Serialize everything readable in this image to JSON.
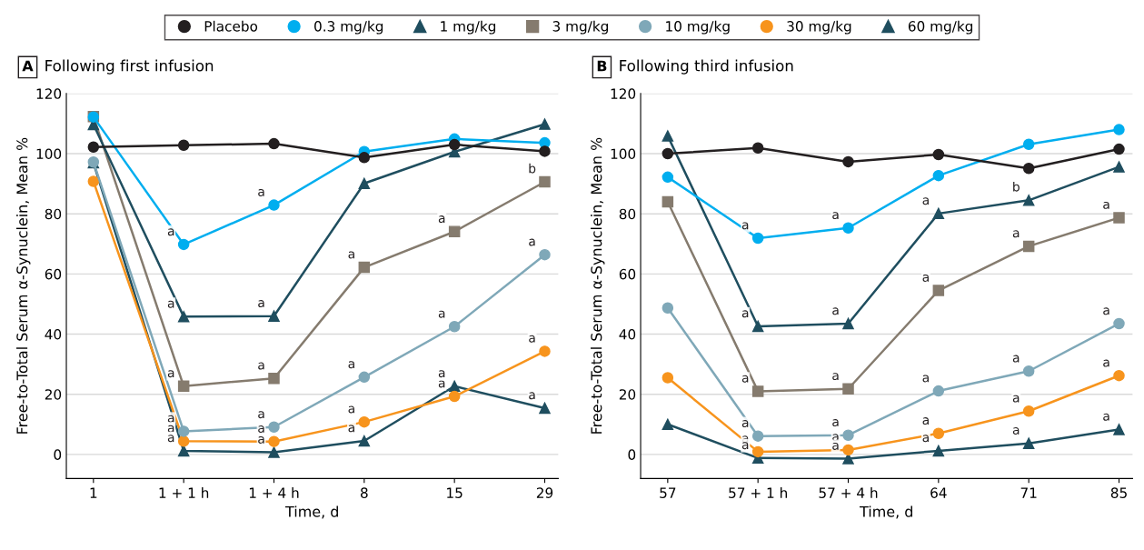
{
  "chart_data": [
    {
      "type": "line",
      "title": "A Following first infusion",
      "xlabel": "Time, d",
      "ylabel": "Free-to-Total Serum α-Synuclein, Mean %",
      "categories": [
        "1",
        "1 + 1 h",
        "1 + 4 h",
        "8",
        "15",
        "29"
      ],
      "ylim": [
        -8,
        120
      ],
      "yticks": [
        0,
        20,
        40,
        60,
        80,
        100,
        120
      ],
      "grid": "y",
      "legend": "top",
      "line_style": "solid",
      "series": [
        {
          "name": "Placebo",
          "color": "#231f20",
          "marker": "circle",
          "values": [
            102.2,
            102.8,
            103.3,
            98.7,
            103,
            100.8
          ]
        },
        {
          "name": "0.3 mg/kg",
          "color": "#00aeef",
          "marker": "circle",
          "values": [
            112.2,
            69.8,
            82.9,
            100.7,
            104.9,
            103.6
          ]
        },
        {
          "name": "1 mg/kg",
          "color": "#1f4e5f",
          "marker": "triangle",
          "values": [
            109.7,
            45.8,
            46,
            90.1,
            100.6,
            109.8
          ]
        },
        {
          "name": "3 mg/kg",
          "color": "#857b6e",
          "marker": "square",
          "values": [
            112.3,
            22.7,
            25.3,
            62.2,
            74.1,
            90.6
          ]
        },
        {
          "name": "10 mg/kg",
          "color": "#7fa8b8",
          "marker": "circle",
          "values": [
            97.2,
            7.7,
            9.1,
            25.7,
            42.5,
            66.4
          ]
        },
        {
          "name": "30 mg/kg",
          "color": "#f7941d",
          "marker": "circle",
          "values": [
            90.8,
            4.4,
            4.3,
            10.8,
            19.3,
            34.3
          ]
        },
        {
          "name": "60 mg/kg",
          "color": "#1f4e5f",
          "marker": "triangle",
          "values": [
            97,
            1.2,
            0.7,
            4.5,
            22.7,
            15.4
          ]
        }
      ],
      "annotations": [
        {
          "text": "a",
          "x": "1 + 1 h",
          "y": 69.8
        },
        {
          "text": "a",
          "x": "1 + 4 h",
          "y": 82.9
        },
        {
          "text": "a",
          "x": "1 + 1 h",
          "y": 45.8
        },
        {
          "text": "a",
          "x": "1 + 4 h",
          "y": 46
        },
        {
          "text": "a",
          "x": "1 + 1 h",
          "y": 22.7
        },
        {
          "text": "a",
          "x": "1 + 4 h",
          "y": 25.3
        },
        {
          "text": "a",
          "x": "8",
          "y": 62.2
        },
        {
          "text": "a",
          "x": "15",
          "y": 74.1
        },
        {
          "text": "b",
          "x": "29",
          "y": 90.6
        },
        {
          "text": "a",
          "x": "1 + 1 h",
          "y": 7.7
        },
        {
          "text": "a",
          "x": "1 + 4 h",
          "y": 9.1
        },
        {
          "text": "a",
          "x": "8",
          "y": 25.7
        },
        {
          "text": "a",
          "x": "15",
          "y": 42.5
        },
        {
          "text": "a",
          "x": "29",
          "y": 66.4
        },
        {
          "text": "a",
          "x": "1 + 1 h",
          "y": 4.4
        },
        {
          "text": "a",
          "x": "1 + 4 h",
          "y": 4.3
        },
        {
          "text": "a",
          "x": "8",
          "y": 10.8
        },
        {
          "text": "a",
          "x": "15",
          "y": 19.3
        },
        {
          "text": "a",
          "x": "29",
          "y": 34.3
        },
        {
          "text": "a",
          "x": "1 + 1 h",
          "y": 1.2
        },
        {
          "text": "a",
          "x": "1 + 4 h",
          "y": 0.7
        },
        {
          "text": "a",
          "x": "8",
          "y": 4.5
        },
        {
          "text": "a",
          "x": "15",
          "y": 22.7
        },
        {
          "text": "a",
          "x": "29",
          "y": 15.4
        }
      ]
    },
    {
      "type": "line",
      "title": "B Following third infusion",
      "xlabel": "Time, d",
      "ylabel": "Free-to-Total Serum α-Synuclein, Mean %",
      "categories": [
        "57",
        "57 + 1 h",
        "57 + 4 h",
        "64",
        "71",
        "85"
      ],
      "ylim": [
        -8,
        120
      ],
      "yticks": [
        0,
        20,
        40,
        60,
        80,
        100,
        120
      ],
      "grid": "y",
      "line_style": "solid",
      "series": [
        {
          "color": "#231f20",
          "marker": "circle",
          "values": [
            100,
            101.9,
            97.3,
            99.7,
            95.1,
            101.5
          ]
        },
        {
          "color": "#00aeef",
          "marker": "circle",
          "values": [
            92.2,
            71.9,
            75.3,
            92.7,
            103.1,
            108
          ]
        },
        {
          "color": "#1f4e5f",
          "marker": "triangle",
          "values": [
            105.9,
            42.6,
            43.5,
            80.1,
            84.5,
            95.6
          ]
        },
        {
          "color": "#857b6e",
          "marker": "square",
          "values": [
            84,
            21,
            21.8,
            54.5,
            69.2,
            78.7
          ]
        },
        {
          "color": "#7fa8b8",
          "marker": "circle",
          "values": [
            48.7,
            6.1,
            6.4,
            21.1,
            27.7,
            43.5
          ]
        },
        {
          "color": "#f7941d",
          "marker": "circle",
          "values": [
            25.5,
            0.9,
            1.5,
            7,
            14.4,
            26.2
          ]
        },
        {
          "color": "#1f4e5f",
          "marker": "triangle",
          "values": [
            10,
            -1.2,
            -1.4,
            1.2,
            3.7,
            8.3
          ]
        }
      ],
      "annotations": [
        {
          "text": "a",
          "x": "57 + 1 h",
          "y": 71.9
        },
        {
          "text": "a",
          "x": "57 + 4 h",
          "y": 75.3
        },
        {
          "text": "a",
          "x": "57 + 1 h",
          "y": 42.6
        },
        {
          "text": "a",
          "x": "57 + 4 h",
          "y": 43.5
        },
        {
          "text": "a",
          "x": "64",
          "y": 80.1
        },
        {
          "text": "b",
          "x": "71",
          "y": 84.5
        },
        {
          "text": "a",
          "x": "57 + 1 h",
          "y": 21
        },
        {
          "text": "a",
          "x": "57 + 4 h",
          "y": 21.8
        },
        {
          "text": "a",
          "x": "64",
          "y": 54.5
        },
        {
          "text": "a",
          "x": "71",
          "y": 69.2
        },
        {
          "text": "a",
          "x": "85",
          "y": 78.7
        },
        {
          "text": "a",
          "x": "57 + 1 h",
          "y": 6.1
        },
        {
          "text": "a",
          "x": "57 + 4 h",
          "y": 6.4
        },
        {
          "text": "a",
          "x": "64",
          "y": 21.1
        },
        {
          "text": "a",
          "x": "71",
          "y": 27.7
        },
        {
          "text": "a",
          "x": "85",
          "y": 43.5
        },
        {
          "text": "a",
          "x": "57 + 1 h",
          "y": 0.9
        },
        {
          "text": "a",
          "x": "57 + 4 h",
          "y": 1.5
        },
        {
          "text": "a",
          "x": "64",
          "y": 7
        },
        {
          "text": "a",
          "x": "71",
          "y": 14.4
        },
        {
          "text": "a",
          "x": "85",
          "y": 26.2
        },
        {
          "text": "a",
          "x": "57 + 1 h",
          "y": -1.2
        },
        {
          "text": "a",
          "x": "57 + 4 h",
          "y": -1.4
        },
        {
          "text": "a",
          "x": "64",
          "y": 1.2
        },
        {
          "text": "a",
          "x": "71",
          "y": 3.7
        },
        {
          "text": "a",
          "x": "85",
          "y": 8.3
        }
      ]
    }
  ]
}
